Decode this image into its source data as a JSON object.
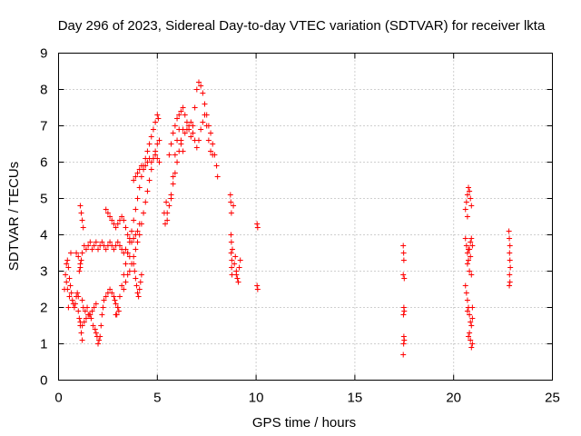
{
  "chart_data": {
    "type": "scatter",
    "title": "Day 296 of 2023, Sidereal Day-to-day VTEC variation (SDTVAR) for receiver lkta",
    "xlabel": "GPS time / hours",
    "ylabel": "SDTVAR / TECUs",
    "xlim": [
      0,
      25
    ],
    "ylim": [
      0,
      9
    ],
    "xticks": [
      0,
      5,
      10,
      15,
      20,
      25
    ],
    "yticks": [
      0,
      1,
      2,
      3,
      4,
      5,
      6,
      7,
      8,
      9
    ],
    "grid": true,
    "marker": "+",
    "color": "#ff0000",
    "series": [
      {
        "name": "SDTVAR",
        "points": [
          [
            0.3,
            2.5
          ],
          [
            0.35,
            2.9
          ],
          [
            0.4,
            3.2
          ],
          [
            0.45,
            3.3
          ],
          [
            0.5,
            3.1
          ],
          [
            0.55,
            2.8
          ],
          [
            0.6,
            2.6
          ],
          [
            0.65,
            2.4
          ],
          [
            0.7,
            2.2
          ],
          [
            0.75,
            2.1
          ],
          [
            0.8,
            2.0
          ],
          [
            0.85,
            2.1
          ],
          [
            0.9,
            2.3
          ],
          [
            0.95,
            2.4
          ],
          [
            1.0,
            2.3
          ],
          [
            0.4,
            2.7
          ],
          [
            0.45,
            2.5
          ],
          [
            0.55,
            2.3
          ],
          [
            0.62,
            3.5
          ],
          [
            0.5,
            2.0
          ],
          [
            1.0,
            1.9
          ],
          [
            1.05,
            1.7
          ],
          [
            1.1,
            1.5
          ],
          [
            1.15,
            1.3
          ],
          [
            1.2,
            1.1
          ],
          [
            1.1,
            1.6
          ],
          [
            1.2,
            1.5
          ],
          [
            1.3,
            1.6
          ],
          [
            1.4,
            1.7
          ],
          [
            1.5,
            1.8
          ],
          [
            1.6,
            1.8
          ],
          [
            1.7,
            1.9
          ],
          [
            1.8,
            2.0
          ],
          [
            1.9,
            2.1
          ],
          [
            1.2,
            2.2
          ],
          [
            1.25,
            2.0
          ],
          [
            1.35,
            1.9
          ],
          [
            1.45,
            2.0
          ],
          [
            1.55,
            1.8
          ],
          [
            1.65,
            1.7
          ],
          [
            1.75,
            1.5
          ],
          [
            1.85,
            1.4
          ],
          [
            1.95,
            1.2
          ],
          [
            2.0,
            1.0
          ],
          [
            2.05,
            1.1
          ],
          [
            2.1,
            1.2
          ],
          [
            1.9,
            1.3
          ],
          [
            2.15,
            1.5
          ],
          [
            2.2,
            1.8
          ],
          [
            2.25,
            2.0
          ],
          [
            2.3,
            2.2
          ],
          [
            2.4,
            2.3
          ],
          [
            2.5,
            2.4
          ],
          [
            2.6,
            2.5
          ],
          [
            2.7,
            2.4
          ],
          [
            2.8,
            2.3
          ],
          [
            2.9,
            2.1
          ],
          [
            3.0,
            2.0
          ],
          [
            2.95,
            1.8
          ],
          [
            3.05,
            1.9
          ],
          [
            2.85,
            2.2
          ],
          [
            1.1,
            4.8
          ],
          [
            1.15,
            4.6
          ],
          [
            1.2,
            4.4
          ],
          [
            1.25,
            4.2
          ],
          [
            1.2,
            3.5
          ],
          [
            1.15,
            3.3
          ],
          [
            1.1,
            3.1
          ],
          [
            1.05,
            3.0
          ],
          [
            1.1,
            3.2
          ],
          [
            1.0,
            3.4
          ],
          [
            0.9,
            3.5
          ],
          [
            1.3,
            3.7
          ],
          [
            1.4,
            3.6
          ],
          [
            1.5,
            3.7
          ],
          [
            1.6,
            3.8
          ],
          [
            1.7,
            3.6
          ],
          [
            1.8,
            3.7
          ],
          [
            1.9,
            3.8
          ],
          [
            2.0,
            3.6
          ],
          [
            2.1,
            3.7
          ],
          [
            2.2,
            3.8
          ],
          [
            2.3,
            3.7
          ],
          [
            2.4,
            3.6
          ],
          [
            2.5,
            3.7
          ],
          [
            2.6,
            3.8
          ],
          [
            2.7,
            3.7
          ],
          [
            2.8,
            3.6
          ],
          [
            2.9,
            3.7
          ],
          [
            3.0,
            3.8
          ],
          [
            3.1,
            3.7
          ],
          [
            3.2,
            3.6
          ],
          [
            3.3,
            3.5
          ],
          [
            3.4,
            3.6
          ],
          [
            3.5,
            3.5
          ],
          [
            3.6,
            3.4
          ],
          [
            2.4,
            4.7
          ],
          [
            2.5,
            4.6
          ],
          [
            2.6,
            4.5
          ],
          [
            2.7,
            4.4
          ],
          [
            2.8,
            4.3
          ],
          [
            2.9,
            4.2
          ],
          [
            3.0,
            4.3
          ],
          [
            3.1,
            4.4
          ],
          [
            3.2,
            4.5
          ],
          [
            3.3,
            4.4
          ],
          [
            3.4,
            4.2
          ],
          [
            3.5,
            4.0
          ],
          [
            3.6,
            3.9
          ],
          [
            3.7,
            3.8
          ],
          [
            3.8,
            3.9
          ],
          [
            3.9,
            4.0
          ],
          [
            4.0,
            4.1
          ],
          [
            4.1,
            4.3
          ],
          [
            2.9,
            1.8
          ],
          [
            3.0,
            2.0
          ],
          [
            3.1,
            2.3
          ],
          [
            3.2,
            2.6
          ],
          [
            3.3,
            2.9
          ],
          [
            3.4,
            3.2
          ],
          [
            3.5,
            3.5
          ],
          [
            3.6,
            3.8
          ],
          [
            3.7,
            4.1
          ],
          [
            3.8,
            4.4
          ],
          [
            3.9,
            4.7
          ],
          [
            4.0,
            5.0
          ],
          [
            4.1,
            5.3
          ],
          [
            4.2,
            5.6
          ],
          [
            4.3,
            5.9
          ],
          [
            4.4,
            6.1
          ],
          [
            4.5,
            6.3
          ],
          [
            4.6,
            6.5
          ],
          [
            4.7,
            6.7
          ],
          [
            4.8,
            6.9
          ],
          [
            4.9,
            7.1
          ],
          [
            5.0,
            7.3
          ],
          [
            5.05,
            7.2
          ],
          [
            3.3,
            2.5
          ],
          [
            3.4,
            2.7
          ],
          [
            3.5,
            2.9
          ],
          [
            3.6,
            3.0
          ],
          [
            3.7,
            3.2
          ],
          [
            3.8,
            3.4
          ],
          [
            3.9,
            3.6
          ],
          [
            4.0,
            3.8
          ],
          [
            4.1,
            4.0
          ],
          [
            4.2,
            4.3
          ],
          [
            4.3,
            4.6
          ],
          [
            4.4,
            4.9
          ],
          [
            4.5,
            5.2
          ],
          [
            4.6,
            5.5
          ],
          [
            4.7,
            5.8
          ],
          [
            4.8,
            6.1
          ],
          [
            4.9,
            6.3
          ],
          [
            5.0,
            6.5
          ],
          [
            5.1,
            6.6
          ],
          [
            3.8,
            5.5
          ],
          [
            3.9,
            5.6
          ],
          [
            4.0,
            5.7
          ],
          [
            4.1,
            5.8
          ],
          [
            4.2,
            5.9
          ],
          [
            4.3,
            5.8
          ],
          [
            4.4,
            5.9
          ],
          [
            4.5,
            6.0
          ],
          [
            4.6,
            6.1
          ],
          [
            4.7,
            6.0
          ],
          [
            4.8,
            6.1
          ],
          [
            4.9,
            6.2
          ],
          [
            5.0,
            6.1
          ],
          [
            5.1,
            6.0
          ],
          [
            3.8,
            3.2
          ],
          [
            3.85,
            3.0
          ],
          [
            3.9,
            2.8
          ],
          [
            3.95,
            2.6
          ],
          [
            4.0,
            2.4
          ],
          [
            4.05,
            2.3
          ],
          [
            4.1,
            2.5
          ],
          [
            4.15,
            2.7
          ],
          [
            4.2,
            2.9
          ],
          [
            5.4,
            4.3
          ],
          [
            5.5,
            4.6
          ],
          [
            5.6,
            4.8
          ],
          [
            5.7,
            5.1
          ],
          [
            5.8,
            5.4
          ],
          [
            5.9,
            5.7
          ],
          [
            6.0,
            6.0
          ],
          [
            6.1,
            6.3
          ],
          [
            6.2,
            6.6
          ],
          [
            6.3,
            6.9
          ],
          [
            5.6,
            6.2
          ],
          [
            5.7,
            6.5
          ],
          [
            5.8,
            6.8
          ],
          [
            5.9,
            7.0
          ],
          [
            6.0,
            7.2
          ],
          [
            6.1,
            7.3
          ],
          [
            6.2,
            7.4
          ],
          [
            6.3,
            7.5
          ],
          [
            6.4,
            7.3
          ],
          [
            6.5,
            7.1
          ],
          [
            6.6,
            6.9
          ],
          [
            6.7,
            6.7
          ],
          [
            6.8,
            7.0
          ],
          [
            6.9,
            7.5
          ],
          [
            7.0,
            8.0
          ],
          [
            7.1,
            8.2
          ],
          [
            7.2,
            8.1
          ],
          [
            7.3,
            7.9
          ],
          [
            7.4,
            7.6
          ],
          [
            7.5,
            7.3
          ],
          [
            7.6,
            7.0
          ],
          [
            7.7,
            6.8
          ],
          [
            7.8,
            6.5
          ],
          [
            7.9,
            6.2
          ],
          [
            8.0,
            5.9
          ],
          [
            8.05,
            5.6
          ],
          [
            6.4,
            6.8
          ],
          [
            6.5,
            6.9
          ],
          [
            6.6,
            7.0
          ],
          [
            6.7,
            7.1
          ],
          [
            6.8,
            6.8
          ],
          [
            6.9,
            6.6
          ],
          [
            7.0,
            6.4
          ],
          [
            7.1,
            6.6
          ],
          [
            7.2,
            6.9
          ],
          [
            7.3,
            7.1
          ],
          [
            7.4,
            7.3
          ],
          [
            7.5,
            7.0
          ],
          [
            7.6,
            6.6
          ],
          [
            7.7,
            6.3
          ],
          [
            7.8,
            6.2
          ],
          [
            6.2,
            6.5
          ],
          [
            6.3,
            6.3
          ],
          [
            6.1,
            6.9
          ],
          [
            6.0,
            6.6
          ],
          [
            5.9,
            6.2
          ],
          [
            5.8,
            5.6
          ],
          [
            5.7,
            5.0
          ],
          [
            5.5,
            4.4
          ],
          [
            5.45,
            4.9
          ],
          [
            5.35,
            4.6
          ],
          [
            8.7,
            5.1
          ],
          [
            8.72,
            4.9
          ],
          [
            8.75,
            4.6
          ],
          [
            8.73,
            4.0
          ],
          [
            8.75,
            3.8
          ],
          [
            8.74,
            3.5
          ],
          [
            8.77,
            3.3
          ],
          [
            8.76,
            3.1
          ],
          [
            8.78,
            2.9
          ],
          [
            8.8,
            3.6
          ],
          [
            8.85,
            4.8
          ],
          [
            8.9,
            3.2
          ],
          [
            9.0,
            3.0
          ],
          [
            9.05,
            2.8
          ],
          [
            9.1,
            2.7
          ],
          [
            9.15,
            3.1
          ],
          [
            9.2,
            3.3
          ],
          [
            8.95,
            3.4
          ],
          [
            9.0,
            2.9
          ],
          [
            10.05,
            4.3
          ],
          [
            10.08,
            4.2
          ],
          [
            10.05,
            2.6
          ],
          [
            10.08,
            2.5
          ],
          [
            17.45,
            3.7
          ],
          [
            17.47,
            3.5
          ],
          [
            17.48,
            3.3
          ],
          [
            17.45,
            2.9
          ],
          [
            17.5,
            2.8
          ],
          [
            17.48,
            2.0
          ],
          [
            17.5,
            1.9
          ],
          [
            17.46,
            1.8
          ],
          [
            17.48,
            1.2
          ],
          [
            17.5,
            1.1
          ],
          [
            17.47,
            1.0
          ],
          [
            17.45,
            0.7
          ],
          [
            20.6,
            4.7
          ],
          [
            20.65,
            4.9
          ],
          [
            20.7,
            5.1
          ],
          [
            20.75,
            5.3
          ],
          [
            20.8,
            5.2
          ],
          [
            20.85,
            5.0
          ],
          [
            20.9,
            4.8
          ],
          [
            20.7,
            4.5
          ],
          [
            20.6,
            3.9
          ],
          [
            20.65,
            3.7
          ],
          [
            20.7,
            3.5
          ],
          [
            20.75,
            3.3
          ],
          [
            20.8,
            3.6
          ],
          [
            20.85,
            3.8
          ],
          [
            20.9,
            3.9
          ],
          [
            20.95,
            3.7
          ],
          [
            20.7,
            3.2
          ],
          [
            20.8,
            3.0
          ],
          [
            20.9,
            2.9
          ],
          [
            20.85,
            3.4
          ],
          [
            20.75,
            3.6
          ],
          [
            20.6,
            2.6
          ],
          [
            20.65,
            2.4
          ],
          [
            20.7,
            2.2
          ],
          [
            20.75,
            2.0
          ],
          [
            20.8,
            1.8
          ],
          [
            20.85,
            1.6
          ],
          [
            20.9,
            1.5
          ],
          [
            20.95,
            1.7
          ],
          [
            20.8,
            1.3
          ],
          [
            20.85,
            1.1
          ],
          [
            20.9,
            0.9
          ],
          [
            20.95,
            1.0
          ],
          [
            20.75,
            1.2
          ],
          [
            20.7,
            1.9
          ],
          [
            20.95,
            2.0
          ],
          [
            22.8,
            4.1
          ],
          [
            22.82,
            3.9
          ],
          [
            22.85,
            3.7
          ],
          [
            22.83,
            3.5
          ],
          [
            22.85,
            3.3
          ],
          [
            22.87,
            3.1
          ],
          [
            22.83,
            2.9
          ],
          [
            22.85,
            2.7
          ],
          [
            22.82,
            2.6
          ]
        ]
      }
    ]
  }
}
